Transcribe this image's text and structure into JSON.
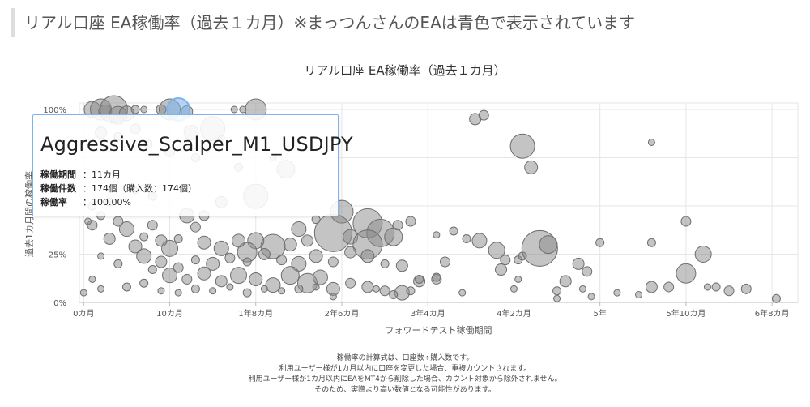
{
  "page": {
    "heading": "リアル口座 EA稼働率（過去１カ月）※まっつんさんのEAは青色で表示されています"
  },
  "chart_data": {
    "type": "bubble",
    "title": "リアル口座 EA稼働率（過去１カ月）",
    "xlabel": "フォワードテスト稼働期間",
    "ylabel": "過去1カ月間の稼働率",
    "xlim": [
      -0.5,
      83
    ],
    "ylim": [
      0,
      100
    ],
    "x_ticks": [
      {
        "value": 0,
        "label": "0カ月"
      },
      {
        "value": 10,
        "label": "10カ月"
      },
      {
        "value": 20,
        "label": "1年8カ月"
      },
      {
        "value": 30,
        "label": "2年6カ月"
      },
      {
        "value": 40,
        "label": "3年4カ月"
      },
      {
        "value": 50,
        "label": "4年2カ月"
      },
      {
        "value": 60,
        "label": "5年"
      },
      {
        "value": 70,
        "label": "5年10カ月"
      },
      {
        "value": 80,
        "label": "6年8カ月"
      }
    ],
    "y_ticks": [
      {
        "value": 0,
        "label": "0%"
      },
      {
        "value": 25,
        "label": "25%"
      },
      {
        "value": 50,
        "label": ""
      },
      {
        "value": 75,
        "label": ""
      },
      {
        "value": 100,
        "label": "100%"
      }
    ],
    "grid": true,
    "colors": {
      "bubble": "#8a8a8a",
      "highlight": "#7cb5ec",
      "grid": "#e6e6e6"
    },
    "highlighted": {
      "x": 11,
      "y": 100,
      "r": 14
    },
    "points": [
      {
        "x": 1,
        "y": 100,
        "r": 10
      },
      {
        "x": 2,
        "y": 100,
        "r": 13
      },
      {
        "x": 2.5,
        "y": 99,
        "r": 8
      },
      {
        "x": 3.5,
        "y": 100,
        "r": 17
      },
      {
        "x": 4,
        "y": 97,
        "r": 11
      },
      {
        "x": 5,
        "y": 98,
        "r": 9
      },
      {
        "x": 6,
        "y": 100,
        "r": 5
      },
      {
        "x": 7,
        "y": 100,
        "r": 4
      },
      {
        "x": 9,
        "y": 100,
        "r": 6
      },
      {
        "x": 10,
        "y": 100,
        "r": 13
      },
      {
        "x": 12,
        "y": 99,
        "r": 7
      },
      {
        "x": 17.5,
        "y": 100,
        "r": 4
      },
      {
        "x": 18.5,
        "y": 100,
        "r": 4
      },
      {
        "x": 20,
        "y": 100,
        "r": 13
      },
      {
        "x": 15,
        "y": 90,
        "r": 15
      },
      {
        "x": 12.5,
        "y": 88,
        "r": 9
      },
      {
        "x": 2,
        "y": 88,
        "r": 7
      },
      {
        "x": 4,
        "y": 86,
        "r": 5
      },
      {
        "x": 6,
        "y": 90,
        "r": 6
      },
      {
        "x": 7.5,
        "y": 82,
        "r": 5
      },
      {
        "x": 10,
        "y": 78,
        "r": 6
      },
      {
        "x": 13,
        "y": 75,
        "r": 5
      },
      {
        "x": 16,
        "y": 85,
        "r": 4
      },
      {
        "x": 18,
        "y": 70,
        "r": 5
      },
      {
        "x": 22,
        "y": 75,
        "r": 4
      },
      {
        "x": 23.5,
        "y": 69,
        "r": 11
      },
      {
        "x": 20,
        "y": 55,
        "r": 15
      },
      {
        "x": 45.5,
        "y": 95,
        "r": 7
      },
      {
        "x": 46.5,
        "y": 97,
        "r": 6
      },
      {
        "x": 51,
        "y": 81,
        "r": 15
      },
      {
        "x": 52,
        "y": 70,
        "r": 8
      },
      {
        "x": 66,
        "y": 83,
        "r": 4
      },
      {
        "x": 30,
        "y": 47,
        "r": 14
      },
      {
        "x": 33,
        "y": 41,
        "r": 18
      },
      {
        "x": 34.5,
        "y": 36,
        "r": 17
      },
      {
        "x": 36,
        "y": 34,
        "r": 11
      },
      {
        "x": 29,
        "y": 36,
        "r": 23
      },
      {
        "x": 31,
        "y": 34,
        "r": 9
      },
      {
        "x": 33,
        "y": 30,
        "r": 18
      },
      {
        "x": 36.5,
        "y": 40,
        "r": 6
      },
      {
        "x": 38,
        "y": 42,
        "r": 6
      },
      {
        "x": 27,
        "y": 43,
        "r": 5
      },
      {
        "x": 25,
        "y": 38,
        "r": 9
      },
      {
        "x": 26,
        "y": 32,
        "r": 7
      },
      {
        "x": 24,
        "y": 30,
        "r": 8
      },
      {
        "x": 22,
        "y": 29,
        "r": 15
      },
      {
        "x": 20,
        "y": 32,
        "r": 10
      },
      {
        "x": 19,
        "y": 26,
        "r": 12
      },
      {
        "x": 18,
        "y": 32,
        "r": 8
      },
      {
        "x": 16,
        "y": 28,
        "r": 9
      },
      {
        "x": 14,
        "y": 31,
        "r": 8
      },
      {
        "x": 13,
        "y": 39,
        "r": 6
      },
      {
        "x": 12,
        "y": 45,
        "r": 9
      },
      {
        "x": 11,
        "y": 33,
        "r": 5
      },
      {
        "x": 10,
        "y": 28,
        "r": 10
      },
      {
        "x": 9,
        "y": 32,
        "r": 7
      },
      {
        "x": 8,
        "y": 40,
        "r": 6
      },
      {
        "x": 7,
        "y": 34,
        "r": 5
      },
      {
        "x": 6,
        "y": 29,
        "r": 8
      },
      {
        "x": 5,
        "y": 38,
        "r": 9
      },
      {
        "x": 4,
        "y": 42,
        "r": 6
      },
      {
        "x": 3,
        "y": 33,
        "r": 7
      },
      {
        "x": 1,
        "y": 40,
        "r": 6
      },
      {
        "x": 2,
        "y": 45,
        "r": 5
      },
      {
        "x": 7,
        "y": 24,
        "r": 9
      },
      {
        "x": 9,
        "y": 21,
        "r": 7
      },
      {
        "x": 11,
        "y": 18,
        "r": 6
      },
      {
        "x": 13,
        "y": 22,
        "r": 5
      },
      {
        "x": 15,
        "y": 20,
        "r": 8
      },
      {
        "x": 17,
        "y": 23,
        "r": 6
      },
      {
        "x": 19,
        "y": 21,
        "r": 5
      },
      {
        "x": 21,
        "y": 25,
        "r": 7
      },
      {
        "x": 23,
        "y": 22,
        "r": 6
      },
      {
        "x": 25,
        "y": 20,
        "r": 9
      },
      {
        "x": 27,
        "y": 24,
        "r": 8
      },
      {
        "x": 29,
        "y": 21,
        "r": 6
      },
      {
        "x": 31,
        "y": 26,
        "r": 7
      },
      {
        "x": 33,
        "y": 24,
        "r": 8
      },
      {
        "x": 35,
        "y": 20,
        "r": 5
      },
      {
        "x": 37,
        "y": 19,
        "r": 7
      },
      {
        "x": 8,
        "y": 17,
        "r": 5
      },
      {
        "x": 10,
        "y": 14,
        "r": 9
      },
      {
        "x": 12,
        "y": 12,
        "r": 6
      },
      {
        "x": 14,
        "y": 15,
        "r": 8
      },
      {
        "x": 16,
        "y": 11,
        "r": 7
      },
      {
        "x": 18,
        "y": 14,
        "r": 10
      },
      {
        "x": 20,
        "y": 12,
        "r": 8
      },
      {
        "x": 22,
        "y": 9,
        "r": 9
      },
      {
        "x": 24,
        "y": 14,
        "r": 11
      },
      {
        "x": 26,
        "y": 10,
        "r": 12
      },
      {
        "x": 27.5,
        "y": 13,
        "r": 9
      },
      {
        "x": 29,
        "y": 7,
        "r": 8
      },
      {
        "x": 31,
        "y": 10,
        "r": 6
      },
      {
        "x": 33,
        "y": 8,
        "r": 7
      },
      {
        "x": 35,
        "y": 6,
        "r": 6
      },
      {
        "x": 37,
        "y": 5,
        "r": 9
      },
      {
        "x": 39,
        "y": 11,
        "r": 7
      },
      {
        "x": 41,
        "y": 12,
        "r": 6
      },
      {
        "x": 2,
        "y": 7,
        "r": 4
      },
      {
        "x": 5,
        "y": 8,
        "r": 5
      },
      {
        "x": 7,
        "y": 10,
        "r": 5
      },
      {
        "x": 9,
        "y": 6,
        "r": 4
      },
      {
        "x": 11,
        "y": 5,
        "r": 4
      },
      {
        "x": 13,
        "y": 7,
        "r": 5
      },
      {
        "x": 15,
        "y": 6,
        "r": 4
      },
      {
        "x": 17,
        "y": 8,
        "r": 4
      },
      {
        "x": 19,
        "y": 5,
        "r": 5
      },
      {
        "x": 21,
        "y": 7,
        "r": 4
      },
      {
        "x": 23,
        "y": 6,
        "r": 4
      },
      {
        "x": 25,
        "y": 7,
        "r": 5
      },
      {
        "x": 27,
        "y": 8,
        "r": 4
      },
      {
        "x": 29,
        "y": 3,
        "r": 4
      },
      {
        "x": 34,
        "y": 7,
        "r": 4
      },
      {
        "x": 36,
        "y": 4,
        "r": 5
      },
      {
        "x": 38,
        "y": 6,
        "r": 5
      },
      {
        "x": 41,
        "y": 35,
        "r": 4
      },
      {
        "x": 43,
        "y": 37,
        "r": 5
      },
      {
        "x": 44.5,
        "y": 33,
        "r": 5
      },
      {
        "x": 46,
        "y": 32,
        "r": 9
      },
      {
        "x": 48,
        "y": 27,
        "r": 10
      },
      {
        "x": 49,
        "y": 22,
        "r": 6
      },
      {
        "x": 50.5,
        "y": 22,
        "r": 5
      },
      {
        "x": 51,
        "y": 24,
        "r": 5
      },
      {
        "x": 53,
        "y": 28,
        "r": 22
      },
      {
        "x": 54,
        "y": 30,
        "r": 11
      },
      {
        "x": 48.5,
        "y": 17,
        "r": 7
      },
      {
        "x": 42,
        "y": 21,
        "r": 6
      },
      {
        "x": 39,
        "y": 12,
        "r": 5
      },
      {
        "x": 41,
        "y": 13,
        "r": 5
      },
      {
        "x": 44,
        "y": 5,
        "r": 4
      },
      {
        "x": 50,
        "y": 7,
        "r": 4
      },
      {
        "x": 50.5,
        "y": 12,
        "r": 4
      },
      {
        "x": 56,
        "y": 11,
        "r": 7
      },
      {
        "x": 57.5,
        "y": 20,
        "r": 7
      },
      {
        "x": 58.5,
        "y": 16,
        "r": 6
      },
      {
        "x": 55,
        "y": 6,
        "r": 5
      },
      {
        "x": 58,
        "y": 7,
        "r": 4
      },
      {
        "x": 59,
        "y": 3,
        "r": 4
      },
      {
        "x": 60,
        "y": 31,
        "r": 5
      },
      {
        "x": 55,
        "y": 2,
        "r": 4
      },
      {
        "x": 62,
        "y": 5,
        "r": 4
      },
      {
        "x": 64.5,
        "y": 4,
        "r": 4
      },
      {
        "x": 66,
        "y": 8,
        "r": 7
      },
      {
        "x": 66,
        "y": 31,
        "r": 5
      },
      {
        "x": 68,
        "y": 8,
        "r": 6
      },
      {
        "x": 70,
        "y": 42,
        "r": 6
      },
      {
        "x": 70,
        "y": 15,
        "r": 12
      },
      {
        "x": 72,
        "y": 25,
        "r": 10
      },
      {
        "x": 72.5,
        "y": 8,
        "r": 4
      },
      {
        "x": 73.5,
        "y": 8,
        "r": 5
      },
      {
        "x": 75,
        "y": 6,
        "r": 6
      },
      {
        "x": 77,
        "y": 7,
        "r": 6
      },
      {
        "x": 80.5,
        "y": 2,
        "r": 5
      },
      {
        "x": 6,
        "y": 58,
        "r": 4
      },
      {
        "x": 3,
        "y": 52,
        "r": 5
      },
      {
        "x": 1,
        "y": 50,
        "r": 5
      },
      {
        "x": 8,
        "y": 55,
        "r": 5
      },
      {
        "x": 16,
        "y": 52,
        "r": 7
      },
      {
        "x": 14,
        "y": 45,
        "r": 6
      },
      {
        "x": 0.5,
        "y": 42,
        "r": 4
      },
      {
        "x": 2,
        "y": 24,
        "r": 4
      },
      {
        "x": 4,
        "y": 20,
        "r": 5
      },
      {
        "x": 0,
        "y": 5,
        "r": 4
      },
      {
        "x": 1,
        "y": 12,
        "r": 4
      }
    ],
    "tooltip": {
      "name": "Aggressive_Scalper_M1_USDJPY",
      "rows": [
        {
          "label": "稼働期間",
          "value": "：11カ月"
        },
        {
          "label": "稼働件数",
          "value": "：174個（購入数：174個）"
        },
        {
          "label": "稼働率",
          "value": "：100.00%"
        }
      ]
    },
    "footnotes": [
      "稼働率の計算式は、口座数÷購入数です。",
      "利用ユーザー様が1カ月以内に口座を変更した場合、重複カウントされます。",
      "利用ユーザー様が1カ月以内にEAをMT4から削除した場合、カウント対象から除外されません。",
      "そのため、実際より高い数値となる可能性があります。"
    ]
  }
}
